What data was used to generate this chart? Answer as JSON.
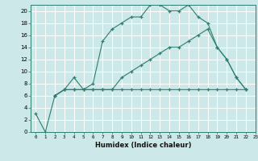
{
  "xlabel": "Humidex (Indice chaleur)",
  "background_color": "#cce8e8",
  "grid_color": "#ffffff",
  "line_color": "#2e7d6e",
  "xlim": [
    -0.5,
    23
  ],
  "ylim": [
    0,
    21
  ],
  "xticks": [
    0,
    1,
    2,
    3,
    4,
    5,
    6,
    7,
    8,
    9,
    10,
    11,
    12,
    13,
    14,
    15,
    16,
    17,
    18,
    19,
    20,
    21,
    22,
    23
  ],
  "yticks": [
    0,
    2,
    4,
    6,
    8,
    10,
    12,
    14,
    16,
    18,
    20
  ],
  "series": [
    {
      "x": [
        0,
        1,
        2,
        3,
        4,
        5,
        6,
        7,
        8,
        9,
        10,
        11,
        12,
        13,
        14,
        15,
        16,
        17,
        18,
        19,
        20,
        21,
        22
      ],
      "y": [
        3,
        0,
        6,
        7,
        9,
        7,
        8,
        15,
        17,
        18,
        19,
        19,
        21,
        21,
        20,
        20,
        21,
        19,
        18,
        14,
        12,
        9,
        7
      ]
    },
    {
      "x": [
        2,
        3,
        4,
        5,
        6,
        7,
        8,
        9,
        10,
        11,
        12,
        13,
        14,
        15,
        16,
        17,
        18,
        19,
        20,
        21,
        22
      ],
      "y": [
        6,
        7,
        7,
        7,
        7,
        7,
        7,
        9,
        10,
        11,
        12,
        13,
        14,
        14,
        15,
        16,
        17,
        14,
        12,
        9,
        7
      ]
    },
    {
      "x": [
        2,
        3,
        4,
        5,
        6,
        7,
        8,
        9,
        10,
        11,
        12,
        13,
        14,
        15,
        16,
        17,
        18,
        19,
        20,
        21,
        22
      ],
      "y": [
        6,
        7,
        7,
        7,
        7,
        7,
        7,
        7,
        7,
        7,
        7,
        7,
        7,
        7,
        7,
        7,
        7,
        7,
        7,
        7,
        7
      ]
    }
  ]
}
